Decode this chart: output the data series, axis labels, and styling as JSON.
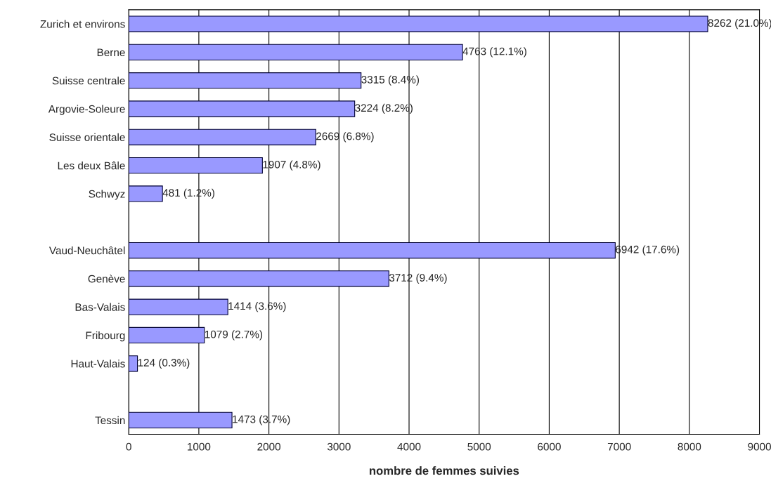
{
  "chart_data": {
    "type": "bar",
    "orientation": "horizontal",
    "xlabel": "nombre de femmes suivies",
    "categories": [
      "Zurich et environs",
      "Berne",
      "Suisse centrale",
      "Argovie-Soleure",
      "Suisse orientale",
      "Les deux Bâle",
      "Schwyz",
      null,
      "Vaud-Neuchâtel",
      "Genève",
      "Bas-Valais",
      "Fribourg",
      "Haut-Valais",
      null,
      "Tessin"
    ],
    "values": [
      8262,
      4763,
      3315,
      3224,
      2669,
      1907,
      481,
      null,
      6942,
      3712,
      1414,
      1079,
      124,
      null,
      1473
    ],
    "value_labels": [
      "8262 (21.0%)",
      "4763 (12.1%)",
      "3315 (8.4%)",
      "3224 (8.2%)",
      "2669 (6.8%)",
      "1907 (4.8%)",
      "481 (1.2%)",
      null,
      "6942 (17.6%)",
      "3712 (9.4%)",
      "1414 (3.6%)",
      "1079 (2.7%)",
      "124 (0.3%)",
      null,
      "1473 (3.7%)"
    ],
    "color": "#9999ff",
    "xlim": [
      0,
      9000
    ],
    "xticks": [
      0,
      1000,
      2000,
      3000,
      4000,
      5000,
      6000,
      7000,
      8000,
      9000
    ],
    "grid": "x",
    "legend": false
  }
}
